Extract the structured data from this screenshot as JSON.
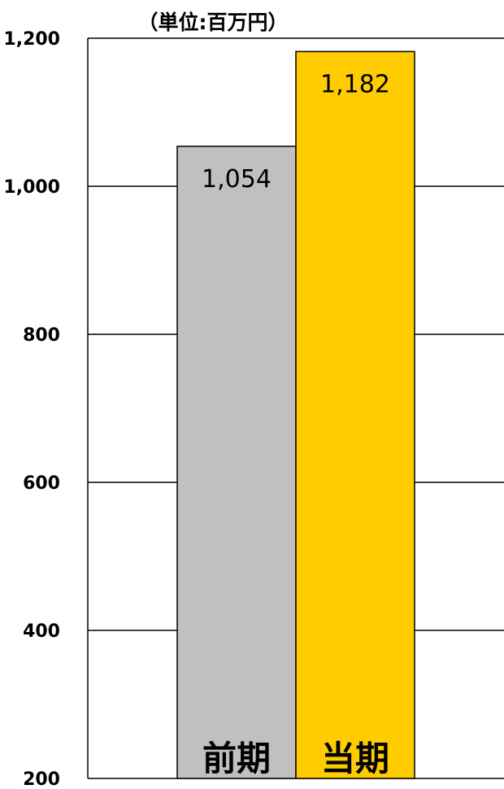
{
  "chart_data": {
    "type": "bar",
    "unit_label": "（単位:百万円）",
    "categories": [
      "前期",
      "当期"
    ],
    "values": [
      1054,
      1182
    ],
    "data_labels": [
      "1,054",
      "1,182"
    ],
    "colors": [
      "#c0c0c0",
      "#ffcc00"
    ],
    "ylim": [
      200,
      1200
    ],
    "yticks": [
      200,
      400,
      600,
      800,
      1000,
      1200
    ],
    "ytick_labels": [
      "200",
      "400",
      "600",
      "800",
      "1,000",
      "1,200"
    ],
    "grid": true,
    "title": "",
    "xlabel": "",
    "ylabel": ""
  }
}
